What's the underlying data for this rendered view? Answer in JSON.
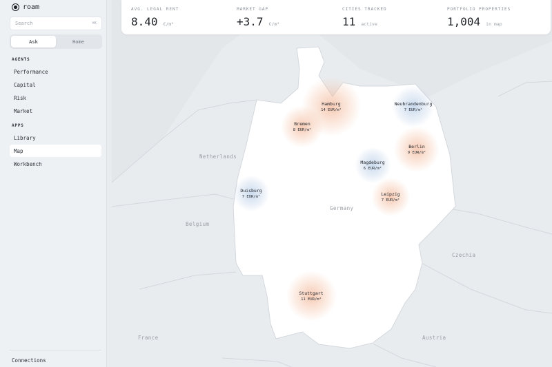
{
  "app": {
    "name": "roam"
  },
  "sidebar": {
    "search": {
      "placeholder": "Search",
      "shortcut": "⌘K"
    },
    "segments": [
      "Ask",
      "Home"
    ],
    "active_segment": "Ask",
    "agents_title": "AGENTS",
    "agents": [
      "Performance",
      "Capital",
      "Risk",
      "Market"
    ],
    "apps_title": "APPS",
    "apps": [
      "Library",
      "Map",
      "Workbench"
    ],
    "active_app": "Map",
    "footer": "Connections"
  },
  "stats": [
    {
      "label": "AVG. LEGAL RENT",
      "value": "8.40",
      "unit": "€/m²"
    },
    {
      "label": "MARKET GAP",
      "value": "+3.7",
      "unit": "€/m²"
    },
    {
      "label": "CITIES TRACKED",
      "value": "11",
      "unit": "active"
    },
    {
      "label": "PORTFOLIO PROPERTIES",
      "value": "1,004",
      "unit": "in map"
    }
  ],
  "map": {
    "countries": {
      "netherlands": "Netherlands",
      "belgium": "Belgium",
      "germany": "Germany",
      "czechia": "Czechia",
      "france": "France",
      "austria": "Austria"
    },
    "cities": [
      {
        "name": "Hamburg",
        "rent": "14 EUR/m²",
        "tone": "warm"
      },
      {
        "name": "Neubrandenburg",
        "rent": "7 EUR/m²",
        "tone": "cool"
      },
      {
        "name": "Bremen",
        "rent": "8 EUR/m²",
        "tone": "warm"
      },
      {
        "name": "Berlin",
        "rent": "9 EUR/m²",
        "tone": "warm"
      },
      {
        "name": "Magdeburg",
        "rent": "6 EUR/m²",
        "tone": "cool"
      },
      {
        "name": "Duisburg",
        "rent": "7 EUR/m²",
        "tone": "cool"
      },
      {
        "name": "Leipzig",
        "rent": "7 EUR/m²",
        "tone": "warm"
      },
      {
        "name": "Stuttgart",
        "rent": "11 EUR/m²",
        "tone": "warm"
      }
    ]
  }
}
